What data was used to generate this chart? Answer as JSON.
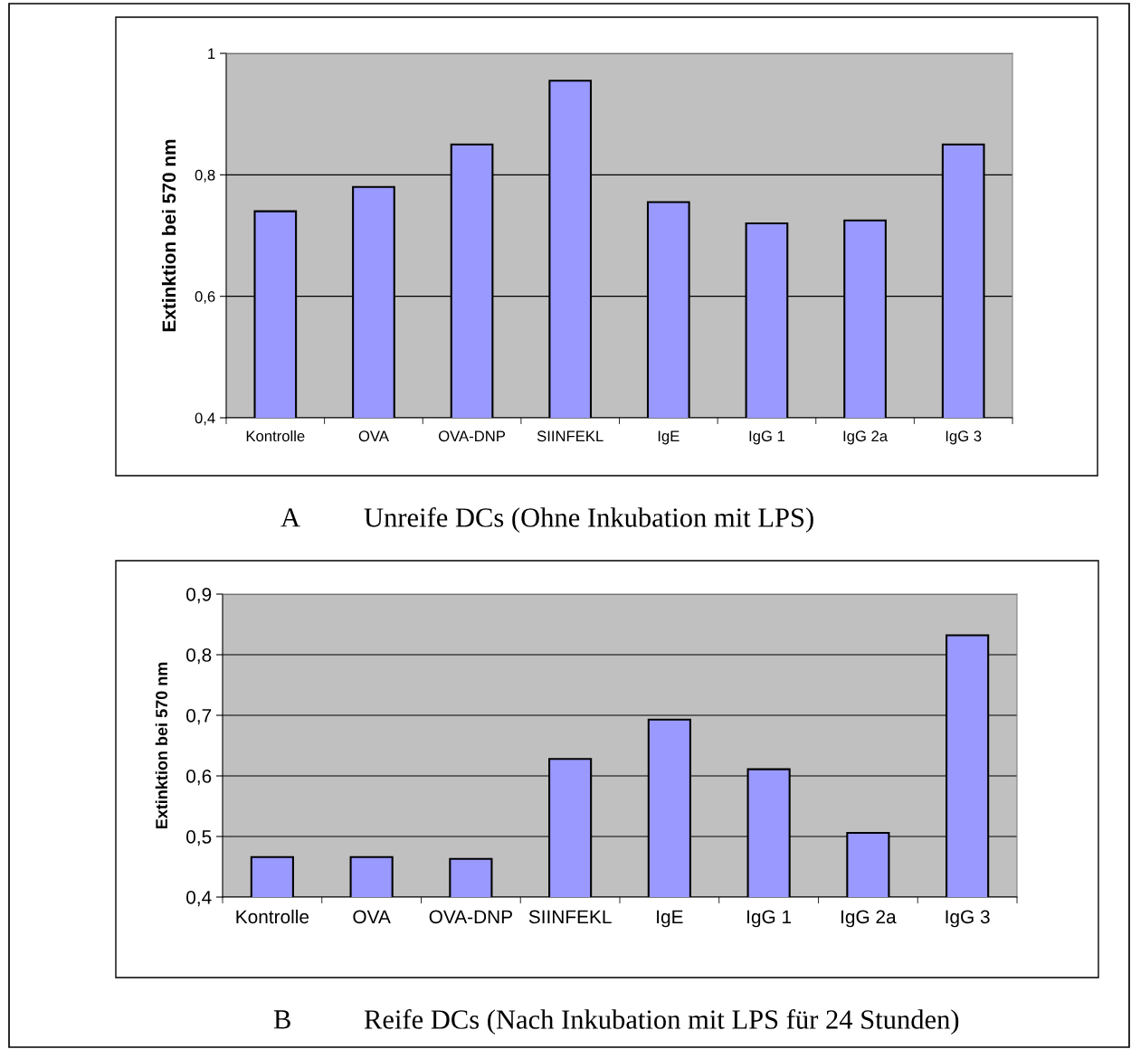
{
  "chart_data": [
    {
      "type": "bar",
      "categories": [
        "Kontrolle",
        "OVA",
        "OVA-DNP",
        "SIINFEKL",
        "IgE",
        "IgG 1",
        "IgG 2a",
        "IgG 3"
      ],
      "values": [
        0.74,
        0.78,
        0.85,
        0.955,
        0.755,
        0.72,
        0.725,
        0.85
      ],
      "color": "#9999ff",
      "ylabel": "Extinktion bei 570 nm",
      "ylim": [
        0.4,
        1.0
      ],
      "yticks": [
        {
          "value": 0.4,
          "label": "0,4"
        },
        {
          "value": 0.6,
          "label": "0,6"
        },
        {
          "value": 0.8,
          "label": "0,8"
        },
        {
          "value": 1.0,
          "label": "1"
        }
      ],
      "grid": "y",
      "annotations": [
        "A",
        "Unreife DCs (Ohne Inkubation mit LPS)"
      ]
    },
    {
      "type": "bar",
      "categories": [
        "Kontrolle",
        "OVA",
        "OVA-DNP",
        "SIINFEKL",
        "IgE",
        "IgG 1",
        "IgG 2a",
        "IgG 3"
      ],
      "values": [
        0.466,
        0.466,
        0.463,
        0.628,
        0.693,
        0.611,
        0.506,
        0.832
      ],
      "color": "#9999ff",
      "ylabel": "Extinktion bei 570 nm",
      "ylim": [
        0.4,
        0.9
      ],
      "yticks": [
        {
          "value": 0.4,
          "label": "0,4"
        },
        {
          "value": 0.5,
          "label": "0,5"
        },
        {
          "value": 0.6,
          "label": "0,6"
        },
        {
          "value": 0.7,
          "label": "0,7"
        },
        {
          "value": 0.8,
          "label": "0,8"
        },
        {
          "value": 0.9,
          "label": "0,9"
        }
      ],
      "grid": "y",
      "annotations": [
        "B",
        "Reife DCs (Nach Inkubation mit LPS für 24 Stunden)"
      ]
    }
  ]
}
